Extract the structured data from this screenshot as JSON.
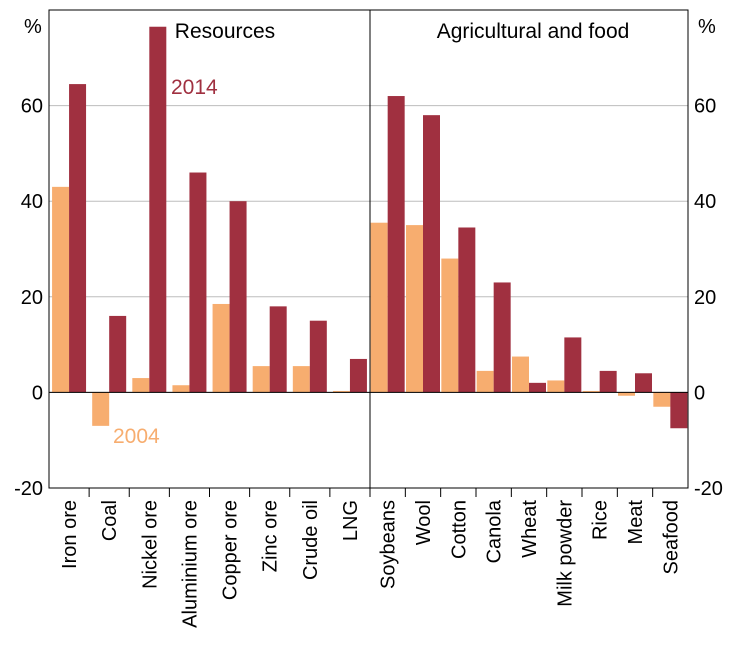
{
  "chart_data": {
    "type": "bar",
    "y_unit": "%",
    "ylim": [
      -20,
      80
    ],
    "yticks": [
      -20,
      0,
      20,
      40,
      60
    ],
    "grid": true,
    "colors": {
      "2004": "#F7AD6F",
      "2014": "#A03040"
    },
    "series_names": [
      "2004",
      "2014"
    ],
    "panels": [
      {
        "title": "Resources",
        "categories": [
          "Iron ore",
          "Coal",
          "Nickel ore",
          "Aluminium ore",
          "Copper ore",
          "Zinc ore",
          "Crude oil",
          "LNG"
        ],
        "series": [
          {
            "name": "2004",
            "values": [
              43,
              -7,
              3,
              1.5,
              18.5,
              5.5,
              5.5,
              0.3
            ]
          },
          {
            "name": "2014",
            "values": [
              64.5,
              16,
              76.5,
              46,
              40,
              18,
              15,
              7
            ]
          }
        ]
      },
      {
        "title": "Agricultural and food",
        "categories": [
          "Soybeans",
          "Wool",
          "Cotton",
          "Canola",
          "Wheat",
          "Milk powder",
          "Rice",
          "Meat",
          "Seafood"
        ],
        "series": [
          {
            "name": "2004",
            "values": [
              35.5,
              35,
              28,
              4.5,
              7.5,
              2.5,
              0.3,
              -0.7,
              -3
            ]
          },
          {
            "name": "2014",
            "values": [
              62,
              58,
              34.5,
              23,
              2,
              11.5,
              4.5,
              4,
              -7.5
            ]
          }
        ]
      }
    ]
  }
}
